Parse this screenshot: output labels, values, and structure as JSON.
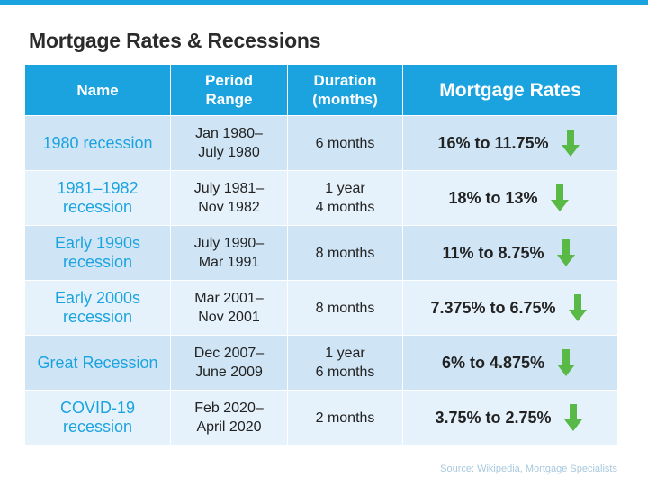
{
  "title": "Mortgage Rates & Recessions",
  "source": "Source: Wikipedia, Mortgage Specialists",
  "colors": {
    "accent": "#1ba3e0",
    "row_dark": "#cfe5f6",
    "row_light": "#e6f2fb",
    "arrow": "#58b947"
  },
  "table": {
    "headers": [
      [
        "Name"
      ],
      [
        "Period",
        "Range"
      ],
      [
        "Duration",
        "(months)"
      ],
      [
        "Mortgage Rates"
      ]
    ]
  },
  "chart_data": {
    "type": "table",
    "title": "Mortgage Rates & Recessions",
    "columns": [
      "Name",
      "Period Range",
      "Duration (months)",
      "Mortgage Rates"
    ],
    "rows": [
      {
        "name": [
          "1980 recession"
        ],
        "period": [
          "Jan 1980–",
          "July 1980"
        ],
        "duration": [
          "6 months"
        ],
        "rates": "16% to 11.75%",
        "trend": "down"
      },
      {
        "name": [
          "1981–1982",
          "recession"
        ],
        "period": [
          "July 1981–",
          "Nov 1982"
        ],
        "duration": [
          "1 year",
          "4 months"
        ],
        "rates": "18% to 13%",
        "trend": "down"
      },
      {
        "name": [
          "Early 1990s",
          "recession"
        ],
        "period": [
          "July 1990–",
          "Mar 1991"
        ],
        "duration": [
          "8 months"
        ],
        "rates": "11% to 8.75%",
        "trend": "down"
      },
      {
        "name": [
          "Early 2000s",
          "recession"
        ],
        "period": [
          "Mar 2001–",
          "Nov 2001"
        ],
        "duration": [
          "8 months"
        ],
        "rates": "7.375% to 6.75%",
        "trend": "down"
      },
      {
        "name": [
          "Great Recession"
        ],
        "period": [
          "Dec 2007–",
          "June 2009"
        ],
        "duration": [
          "1 year",
          "6 months"
        ],
        "rates": "6% to 4.875%",
        "trend": "down"
      },
      {
        "name": [
          "COVID-19",
          "recession"
        ],
        "period": [
          "Feb 2020–",
          "April 2020"
        ],
        "duration": [
          "2 months"
        ],
        "rates": "3.75% to 2.75%",
        "trend": "down"
      }
    ]
  }
}
